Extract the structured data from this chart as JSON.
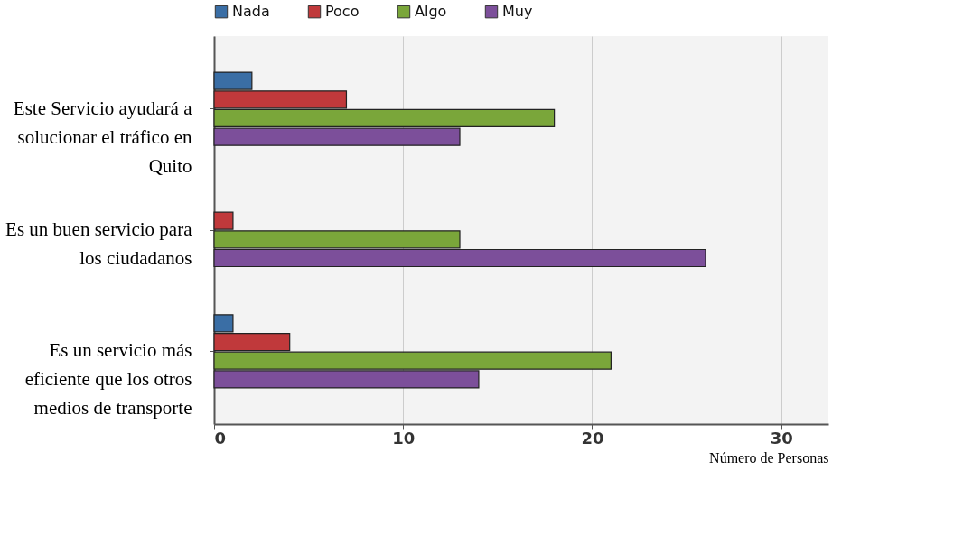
{
  "chart_data": {
    "type": "bar",
    "orientation": "horizontal",
    "xlabel": "Número de Personas",
    "categories": [
      "Este Servicio ayudará a solucionar el tráfico en Quito",
      "Es un buen servicio para los ciudadanos",
      "Es un servicio más eficiente que los otros medios de transporte"
    ],
    "series": [
      {
        "name": "Nada",
        "color": "#3a6ea5",
        "values": [
          2,
          null,
          1
        ]
      },
      {
        "name": "Poco",
        "color": "#c0393b",
        "values": [
          7,
          1,
          4
        ]
      },
      {
        "name": "Algo",
        "color": "#7aa63a",
        "values": [
          18,
          13,
          21
        ]
      },
      {
        "name": "Muy",
        "color": "#7c4f9a",
        "values": [
          13,
          26,
          14
        ]
      }
    ],
    "xlim": [
      0,
      32.5
    ],
    "xticks": [
      0,
      10,
      20,
      30
    ],
    "grid": "x",
    "legend": "top left"
  }
}
